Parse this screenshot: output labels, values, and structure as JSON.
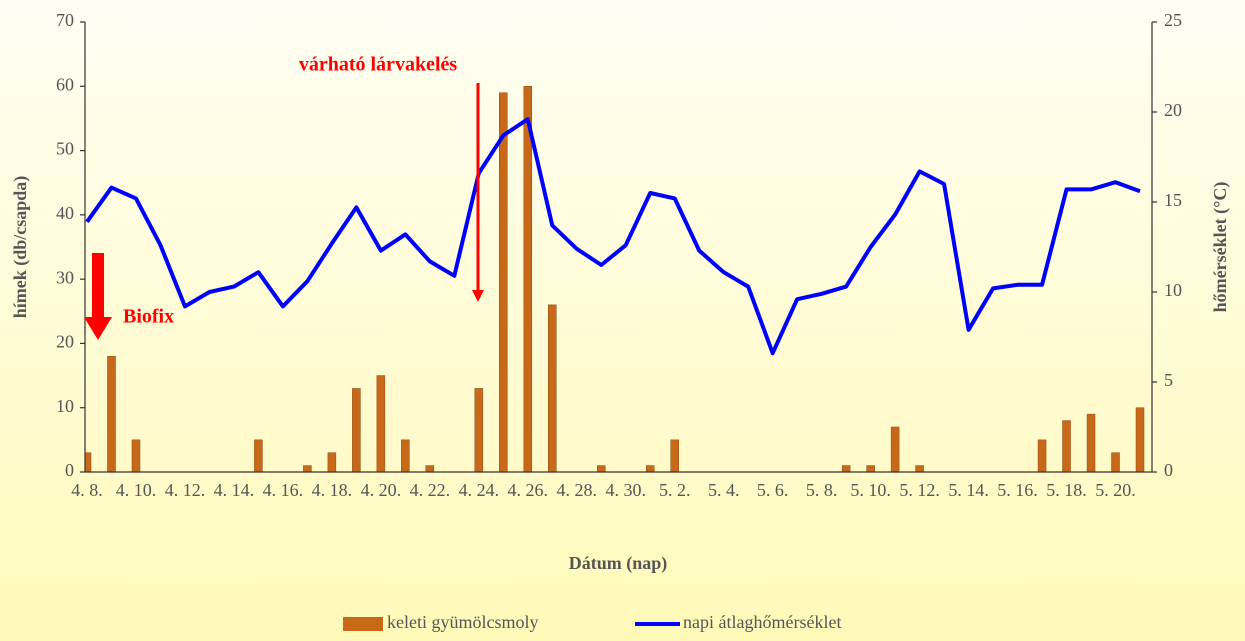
{
  "chart_data": {
    "type": "bar",
    "x_label": "Dátum (nap)",
    "y_label": "hímek (db/csapda)",
    "y2_label": "hőmérséklet (°C)",
    "annotations": [
      "várható lárvakelés",
      "Biofix"
    ],
    "categories": [
      "4. 8.",
      null,
      "4. 10.",
      null,
      "4. 12.",
      null,
      "4. 14.",
      null,
      "4. 16.",
      null,
      "4. 18.",
      null,
      "4. 20.",
      null,
      "4. 22.",
      null,
      "4. 24.",
      null,
      "4. 26.",
      null,
      "4. 28.",
      null,
      "4. 30.",
      null,
      "5. 2.",
      null,
      "5. 4.",
      null,
      "5. 6.",
      null,
      "5. 8.",
      null,
      "5. 10.",
      null,
      "5. 12.",
      null,
      "5. 14.",
      null,
      "5. 16.",
      null,
      "5. 18.",
      null,
      "5. 20.",
      null
    ],
    "series": [
      {
        "name": "keleti gyümölcsmoly",
        "type": "bar",
        "color": "#c8691a",
        "values": [
          3,
          18,
          5,
          0,
          0,
          0,
          0,
          5,
          0,
          1,
          3,
          13,
          15,
          5,
          1,
          0,
          13,
          59,
          60,
          26,
          0,
          1,
          0,
          1,
          5,
          0,
          0,
          0,
          0,
          0,
          0,
          1,
          1,
          7,
          1,
          0,
          0,
          0,
          0,
          5,
          8,
          9,
          3,
          10
        ]
      },
      {
        "name": "napi átlaghőmérséklet",
        "type": "line",
        "color": "#0000ff",
        "axis": "y2",
        "values": [
          13.9,
          15.8,
          15.2,
          12.6,
          9.2,
          10.0,
          10.3,
          11.1,
          9.2,
          10.6,
          12.7,
          14.7,
          12.3,
          13.2,
          11.7,
          10.9,
          16.6,
          18.7,
          19.6,
          13.7,
          12.4,
          11.5,
          12.6,
          15.5,
          15.2,
          12.3,
          11.1,
          10.3,
          6.6,
          9.6,
          9.9,
          10.3,
          12.5,
          14.3,
          16.7,
          16.0,
          7.9,
          10.2,
          10.4,
          10.4,
          15.7,
          15.7,
          16.1,
          15.6
        ]
      }
    ],
    "ylim": [
      0,
      70
    ],
    "yticks": [
      0,
      10,
      20,
      30,
      40,
      50,
      60,
      70
    ],
    "y2lim": [
      0,
      25
    ],
    "y2ticks": [
      0,
      5,
      10,
      15,
      20,
      25
    ]
  }
}
